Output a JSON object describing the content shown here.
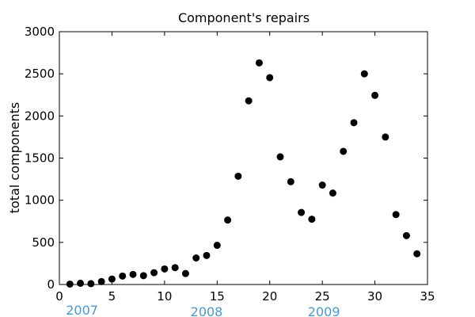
{
  "chart_data": {
    "type": "scatter",
    "title": "Component's repairs",
    "xlabel": "",
    "ylabel": "total components",
    "xlim": [
      0,
      35
    ],
    "ylim": [
      0,
      3000
    ],
    "xticks": [
      0,
      5,
      10,
      15,
      20,
      25,
      30,
      35
    ],
    "yticks": [
      0,
      500,
      1000,
      1500,
      2000,
      2500,
      3000
    ],
    "grid": false,
    "marker_color": "#000000",
    "year_label_color": "#4a9acb",
    "year_labels": [
      {
        "text": "2007",
        "x": 2
      },
      {
        "text": "2008",
        "x": 14
      },
      {
        "text": "2009",
        "x": 25
      }
    ],
    "points": [
      {
        "x": 1,
        "y": 5
      },
      {
        "x": 2,
        "y": 15
      },
      {
        "x": 3,
        "y": 10
      },
      {
        "x": 4,
        "y": 35
      },
      {
        "x": 5,
        "y": 65
      },
      {
        "x": 6,
        "y": 100
      },
      {
        "x": 7,
        "y": 120
      },
      {
        "x": 8,
        "y": 105
      },
      {
        "x": 9,
        "y": 140
      },
      {
        "x": 10,
        "y": 185
      },
      {
        "x": 11,
        "y": 200
      },
      {
        "x": 12,
        "y": 130
      },
      {
        "x": 13,
        "y": 315
      },
      {
        "x": 14,
        "y": 345
      },
      {
        "x": 15,
        "y": 465
      },
      {
        "x": 16,
        "y": 765
      },
      {
        "x": 17,
        "y": 1285
      },
      {
        "x": 18,
        "y": 2180
      },
      {
        "x": 19,
        "y": 2630
      },
      {
        "x": 20,
        "y": 2455
      },
      {
        "x": 21,
        "y": 1515
      },
      {
        "x": 22,
        "y": 1220
      },
      {
        "x": 23,
        "y": 855
      },
      {
        "x": 24,
        "y": 775
      },
      {
        "x": 25,
        "y": 1180
      },
      {
        "x": 26,
        "y": 1085
      },
      {
        "x": 27,
        "y": 1580
      },
      {
        "x": 28,
        "y": 1920
      },
      {
        "x": 29,
        "y": 2500
      },
      {
        "x": 30,
        "y": 2245
      },
      {
        "x": 31,
        "y": 1750
      },
      {
        "x": 32,
        "y": 830
      },
      {
        "x": 33,
        "y": 580
      },
      {
        "x": 34,
        "y": 365
      }
    ]
  }
}
